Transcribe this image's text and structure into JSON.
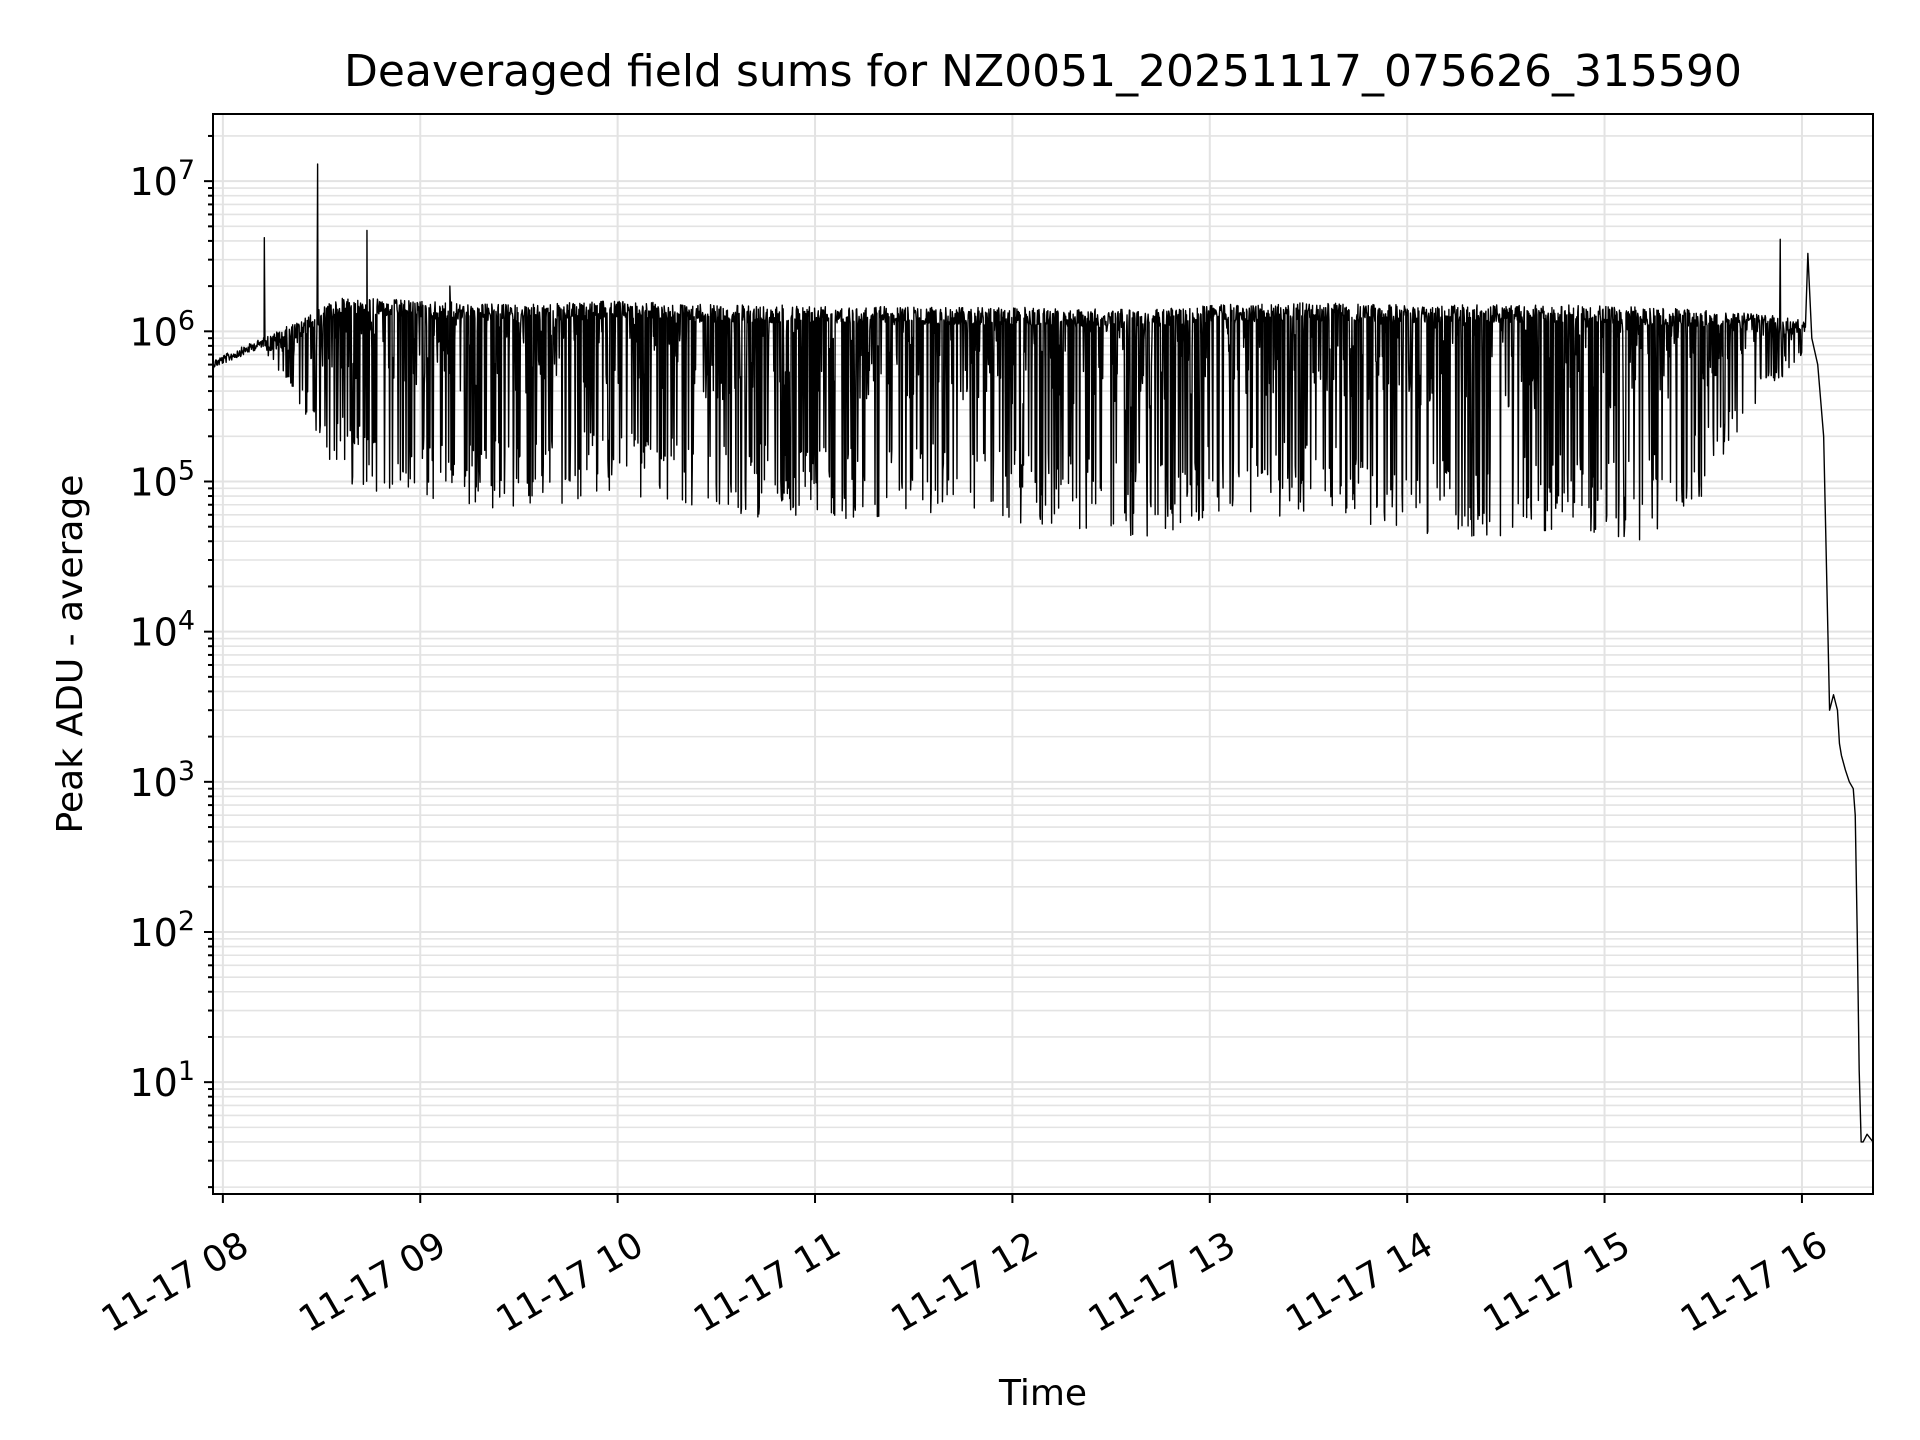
{
  "chart_data": {
    "type": "line",
    "title": "Deaveraged field sums for NZ0051_20251117_075626_315590",
    "xlabel": "Time",
    "ylabel": "Peak ADU - average",
    "yscale": "log",
    "ylim": [
      1.8,
      28000000
    ],
    "xlim_hours": [
      7.95,
      16.36
    ],
    "grid": true,
    "line_color": "#000000",
    "x_ticks": [
      {
        "hour": 8,
        "label": "11-17 08"
      },
      {
        "hour": 9,
        "label": "11-17 09"
      },
      {
        "hour": 10,
        "label": "11-17 10"
      },
      {
        "hour": 11,
        "label": "11-17 11"
      },
      {
        "hour": 12,
        "label": "11-17 12"
      },
      {
        "hour": 13,
        "label": "11-17 13"
      },
      {
        "hour": 14,
        "label": "11-17 14"
      },
      {
        "hour": 15,
        "label": "11-17 15"
      },
      {
        "hour": 16,
        "label": "11-17 16"
      }
    ],
    "y_ticks": [
      {
        "exp": 1,
        "base": "10",
        "sup": "1"
      },
      {
        "exp": 2,
        "base": "10",
        "sup": "2"
      },
      {
        "exp": 3,
        "base": "10",
        "sup": "3"
      },
      {
        "exp": 4,
        "base": "10",
        "sup": "4"
      },
      {
        "exp": 5,
        "base": "10",
        "sup": "5"
      },
      {
        "exp": 6,
        "base": "10",
        "sup": "6"
      },
      {
        "exp": 7,
        "base": "10",
        "sup": "7"
      }
    ],
    "series": [
      {
        "name": "field sum",
        "envelope": {
          "hours": [
            7.95,
            8.2,
            8.4,
            8.6,
            9.0,
            9.5,
            10.0,
            10.5,
            11.0,
            11.5,
            12.0,
            12.5,
            12.7,
            13.0,
            13.5,
            14.0,
            14.4,
            14.8,
            15.2,
            15.5,
            15.8,
            16.0
          ],
          "upper": [
            650000,
            900000,
            1200000,
            1700000,
            1600000,
            1500000,
            1600000,
            1500000,
            1500000,
            1450000,
            1450000,
            1400000,
            1400000,
            1500000,
            1550000,
            1500000,
            1500000,
            1500000,
            1450000,
            1400000,
            1300000,
            1200000
          ],
          "lower": [
            650000,
            700000,
            300000,
            100000,
            70000,
            65000,
            80000,
            60000,
            55000,
            60000,
            50000,
            45000,
            40000,
            55000,
            60000,
            45000,
            40000,
            45000,
            40000,
            80000,
            350000,
            700000
          ]
        },
        "spikes": [
          {
            "hour": 8.21,
            "value": 4200000
          },
          {
            "hour": 8.48,
            "value": 13000000
          },
          {
            "hour": 8.73,
            "value": 4700000
          },
          {
            "hour": 9.15,
            "value": 2000000
          },
          {
            "hour": 15.89,
            "value": 4100000
          },
          {
            "hour": 16.03,
            "value": 3300000
          }
        ],
        "tail": {
          "hours": [
            16.02,
            16.05,
            16.08,
            16.11,
            16.14,
            16.16,
            16.18,
            16.19,
            16.2,
            16.22,
            16.24,
            16.26,
            16.27,
            16.28,
            16.29,
            16.3,
            16.31,
            16.33,
            16.36
          ],
          "values": [
            1000000,
            900000,
            600000,
            200000,
            3000,
            3800,
            3000,
            1800,
            1500,
            1200,
            1000,
            900,
            600,
            100,
            12,
            4,
            4,
            4.5,
            4
          ]
        }
      }
    ]
  }
}
